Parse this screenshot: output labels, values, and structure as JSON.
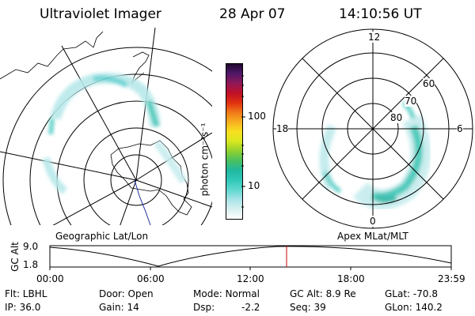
{
  "header": {
    "title": "Ultraviolet Imager",
    "date": "28 Apr 07",
    "time": "14:10:56 UT"
  },
  "colorbar": {
    "label": "photon cm⁻²s⁻¹",
    "ticks": [
      "100",
      "10"
    ],
    "scale": "log",
    "colors": [
      "#ffffff",
      "#d8f0f0",
      "#a8e4e8",
      "#60d8d0",
      "#30c8b8",
      "#20b8a0",
      "#48c060",
      "#90d030",
      "#d8e820",
      "#f8e020",
      "#f8b020",
      "#f07818",
      "#e03010",
      "#c01028",
      "#901858",
      "#501868",
      "#200830"
    ]
  },
  "panels": {
    "geo_label": "Geographic Lat/Lon",
    "apex_label": "Apex MLat/MLT",
    "apex_hours": {
      "top": "12",
      "left": "18",
      "right": "6",
      "bottom": "0"
    },
    "apex_lats": [
      "60",
      "70",
      "80"
    ]
  },
  "altitude_plot": {
    "ylabel": "GC Alt",
    "y_ticks": [
      "9.0",
      "1.8"
    ],
    "x_ticks": [
      "00:00",
      "06:00",
      "12:00",
      "18:00",
      "23:59"
    ],
    "marker_time": "14:10:56",
    "marker_color": "#cc0000"
  },
  "footer": {
    "filter": "Flt: LBHL",
    "ip": "IP: 36.0",
    "door": "Door: Open",
    "gain": "Gain: 14",
    "mode": "Mode: Normal",
    "dsp_label": "Dsp:",
    "dsp_value": "-2.2",
    "gc_alt": "GC Alt: 8.9 Re",
    "seq": "Seq: 39",
    "glat": "GLat: -70.8",
    "glon": "GLon: 140.2"
  }
}
